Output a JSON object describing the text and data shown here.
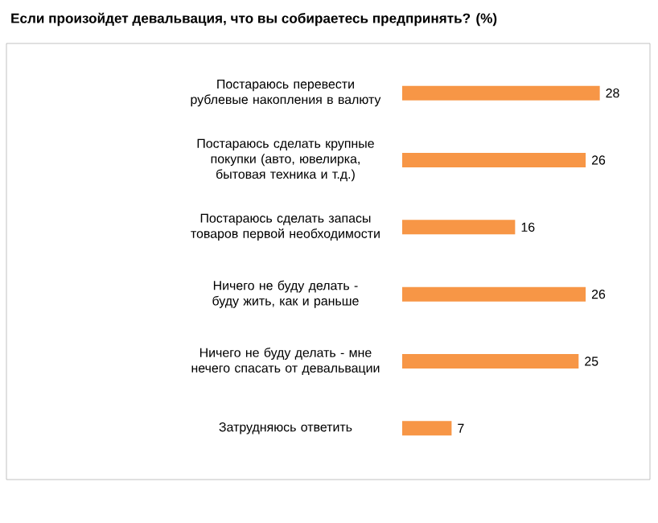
{
  "chart_data": {
    "type": "bar",
    "orientation": "horizontal",
    "title": "Если произойдет девальвация, что вы собираетесь предпринять? (%)",
    "categories": [
      "Постараюсь перевести рублевые накопления в валюту",
      "Постараюсь сделать крупные покупки (авто, ювелирка, бытовая техника и т.д.)",
      "Постараюсь сделать запасы товаров первой необходимости",
      "Ничего не буду делать - буду жить, как и раньше",
      "Ничего не буду делать - мне нечего спасать от девальвации",
      "Затрудняюсь ответить"
    ],
    "values": [
      28,
      26,
      16,
      26,
      25,
      7
    ],
    "color": "#f79646",
    "data_labels": true,
    "tick_labels": "y"
  }
}
